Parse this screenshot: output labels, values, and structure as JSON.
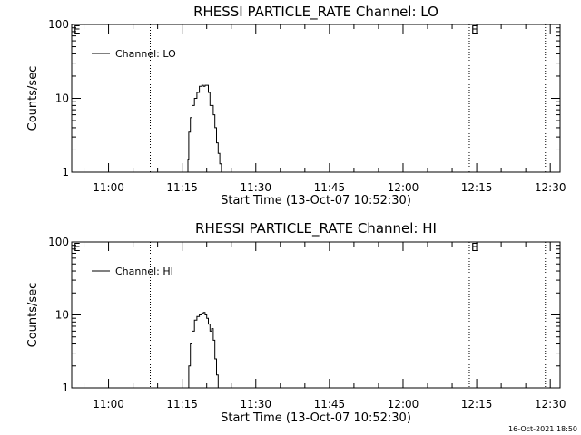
{
  "chart_data": [
    {
      "type": "line",
      "title": "RHESSI PARTICLE_RATE Channel: LO",
      "xlabel": "Start Time (13-Oct-07 10:52:30)",
      "ylabel": "Counts/sec",
      "y_scale": "log",
      "ylim": [
        1,
        100
      ],
      "y_ticks": [
        "1",
        "10",
        "100"
      ],
      "xlim": [
        "10:52:30",
        "12:32:00"
      ],
      "x_ticks": [
        "11:00",
        "11:15",
        "11:30",
        "11:45",
        "12:00",
        "12:15",
        "12:30"
      ],
      "grid": false,
      "legend": {
        "placement": "top-left",
        "entries": [
          "Channel: LO"
        ]
      },
      "markers": [
        {
          "time": "10:52:30",
          "label": "E"
        },
        {
          "time": "11:08:30",
          "label": ""
        },
        {
          "time": "12:13:30",
          "label": "E"
        },
        {
          "time": "12:29:00",
          "label": ""
        }
      ],
      "series": [
        {
          "name": "Channel: LO",
          "x": [
            "11:16:00",
            "11:16:10",
            "11:16:20",
            "11:16:40",
            "11:17:00",
            "11:17:30",
            "11:18:00",
            "11:18:30",
            "11:19:00",
            "11:19:20",
            "11:19:40",
            "11:20:00",
            "11:20:20",
            "11:20:40",
            "11:21:00",
            "11:21:20",
            "11:21:40",
            "11:22:00",
            "11:22:20",
            "11:22:40",
            "11:23:00"
          ],
          "values": [
            1,
            1.5,
            3.5,
            5.5,
            8,
            10,
            12,
            14.5,
            15,
            14.5,
            15,
            15,
            12,
            8,
            8,
            6,
            4,
            2.5,
            1.8,
            1.3,
            1
          ]
        }
      ]
    },
    {
      "type": "line",
      "title": "RHESSI PARTICLE_RATE Channel: HI",
      "xlabel": "Start Time (13-Oct-07 10:52:30)",
      "ylabel": "Counts/sec",
      "y_scale": "log",
      "ylim": [
        1,
        100
      ],
      "y_ticks": [
        "1",
        "10",
        "100"
      ],
      "xlim": [
        "10:52:30",
        "12:32:00"
      ],
      "x_ticks": [
        "11:00",
        "11:15",
        "11:30",
        "11:45",
        "12:00",
        "12:15",
        "12:30"
      ],
      "grid": false,
      "legend": {
        "placement": "top-left",
        "entries": [
          "Channel: HI"
        ]
      },
      "markers": [
        {
          "time": "10:52:30",
          "label": "E"
        },
        {
          "time": "11:08:30",
          "label": ""
        },
        {
          "time": "12:13:30",
          "label": "E"
        },
        {
          "time": "12:29:00",
          "label": ""
        }
      ],
      "series": [
        {
          "name": "Channel: HI",
          "x": [
            "11:16:00",
            "11:16:20",
            "11:16:40",
            "11:17:00",
            "11:17:30",
            "11:18:00",
            "11:18:30",
            "11:19:00",
            "11:19:20",
            "11:19:40",
            "11:20:00",
            "11:20:20",
            "11:20:40",
            "11:21:00",
            "11:21:20",
            "11:21:40",
            "11:22:00",
            "11:22:20"
          ],
          "values": [
            1,
            2,
            4,
            6,
            8.5,
            9.5,
            10,
            10.5,
            10.8,
            10,
            9,
            7.5,
            6,
            6.5,
            4.5,
            2.5,
            1.5,
            1
          ]
        }
      ]
    }
  ],
  "footer": {
    "timestamp": "16-Oct-2021 18:50"
  }
}
